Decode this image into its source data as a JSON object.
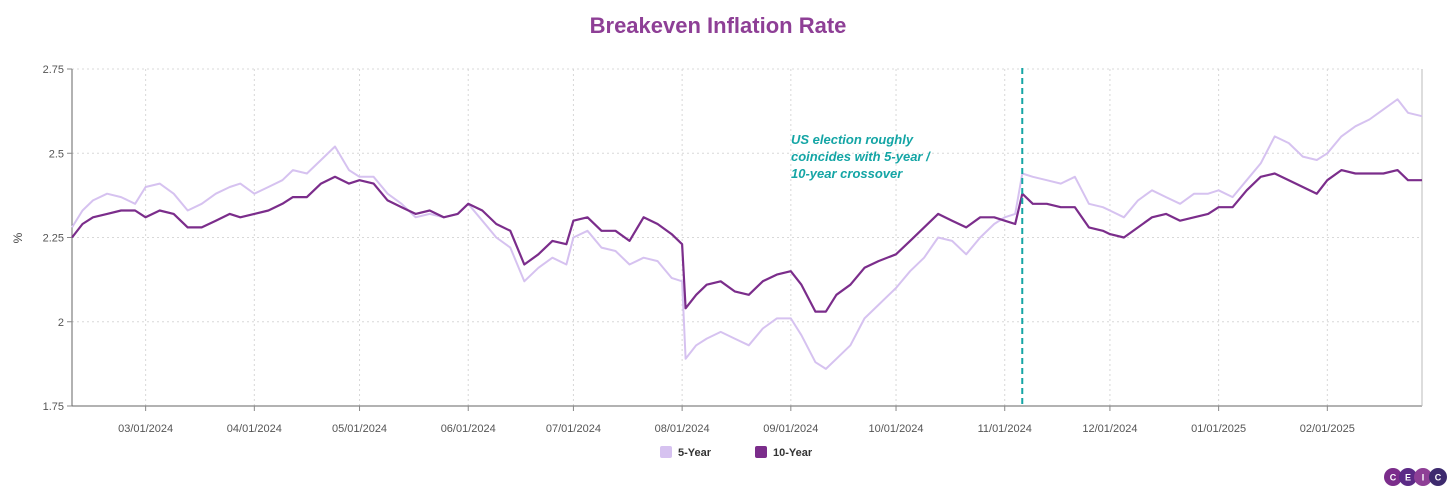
{
  "chart_data": {
    "type": "line",
    "title": "Breakeven Inflation Rate",
    "ylabel": "%",
    "xlabel": "",
    "ylim": [
      1.75,
      2.75
    ],
    "yticks": [
      1.75,
      2,
      2.25,
      2.5,
      2.75
    ],
    "ytick_labels": [
      "1.75",
      "2",
      "2.25",
      "2.5",
      "2.75"
    ],
    "xlim": [
      "2024-02-09",
      "2025-02-28"
    ],
    "xticks": [
      "2024-03-01",
      "2024-04-01",
      "2024-05-01",
      "2024-06-01",
      "2024-07-01",
      "2024-08-01",
      "2024-09-01",
      "2024-10-01",
      "2024-11-01",
      "2024-12-01",
      "2025-01-01",
      "2025-02-01"
    ],
    "xtick_labels": [
      "03/01/2024",
      "04/01/2024",
      "05/01/2024",
      "06/01/2024",
      "07/01/2024",
      "08/01/2024",
      "09/01/2024",
      "10/01/2024",
      "11/01/2024",
      "12/01/2024",
      "01/01/2025",
      "02/01/2025"
    ],
    "grid": true,
    "legend_position": "bottom-center",
    "vline": {
      "date": "2024-11-06",
      "color": "#14a5a5",
      "style": "dashed"
    },
    "annotation": {
      "lines": [
        "US election roughly",
        "coincides with 5-year /",
        "10-year crossover"
      ],
      "color": "#14a5a5"
    },
    "series": [
      {
        "name": "5-Year",
        "color": "#d6c2f0",
        "x": [
          "2024-02-09",
          "2024-02-12",
          "2024-02-15",
          "2024-02-19",
          "2024-02-23",
          "2024-02-27",
          "2024-03-01",
          "2024-03-05",
          "2024-03-09",
          "2024-03-13",
          "2024-03-17",
          "2024-03-21",
          "2024-03-25",
          "2024-03-28",
          "2024-04-01",
          "2024-04-05",
          "2024-04-09",
          "2024-04-12",
          "2024-04-16",
          "2024-04-20",
          "2024-04-24",
          "2024-04-28",
          "2024-05-01",
          "2024-05-05",
          "2024-05-09",
          "2024-05-13",
          "2024-05-17",
          "2024-05-21",
          "2024-05-25",
          "2024-05-29",
          "2024-06-01",
          "2024-06-05",
          "2024-06-09",
          "2024-06-13",
          "2024-06-17",
          "2024-06-21",
          "2024-06-25",
          "2024-06-29",
          "2024-07-01",
          "2024-07-05",
          "2024-07-09",
          "2024-07-13",
          "2024-07-17",
          "2024-07-21",
          "2024-07-25",
          "2024-07-29",
          "2024-08-01",
          "2024-08-02",
          "2024-08-05",
          "2024-08-08",
          "2024-08-12",
          "2024-08-16",
          "2024-08-20",
          "2024-08-24",
          "2024-08-28",
          "2024-09-01",
          "2024-09-04",
          "2024-09-08",
          "2024-09-11",
          "2024-09-14",
          "2024-09-18",
          "2024-09-22",
          "2024-09-26",
          "2024-10-01",
          "2024-10-05",
          "2024-10-09",
          "2024-10-13",
          "2024-10-17",
          "2024-10-21",
          "2024-10-25",
          "2024-10-29",
          "2024-11-01",
          "2024-11-04",
          "2024-11-06",
          "2024-11-09",
          "2024-11-13",
          "2024-11-17",
          "2024-11-21",
          "2024-11-25",
          "2024-11-29",
          "2024-12-01",
          "2024-12-05",
          "2024-12-09",
          "2024-12-13",
          "2024-12-17",
          "2024-12-21",
          "2024-12-25",
          "2024-12-29",
          "2025-01-01",
          "2025-01-05",
          "2025-01-09",
          "2025-01-13",
          "2025-01-17",
          "2025-01-21",
          "2025-01-25",
          "2025-01-29",
          "2025-02-01",
          "2025-02-05",
          "2025-02-09",
          "2025-02-13",
          "2025-02-17",
          "2025-02-21",
          "2025-02-24",
          "2025-02-28"
        ],
        "values": [
          2.28,
          2.33,
          2.36,
          2.38,
          2.37,
          2.35,
          2.4,
          2.41,
          2.38,
          2.33,
          2.35,
          2.38,
          2.4,
          2.41,
          2.38,
          2.4,
          2.42,
          2.45,
          2.44,
          2.48,
          2.52,
          2.45,
          2.43,
          2.43,
          2.38,
          2.35,
          2.31,
          2.32,
          2.31,
          2.32,
          2.35,
          2.3,
          2.25,
          2.22,
          2.12,
          2.16,
          2.19,
          2.17,
          2.25,
          2.27,
          2.22,
          2.21,
          2.17,
          2.19,
          2.18,
          2.13,
          2.12,
          1.89,
          1.93,
          1.95,
          1.97,
          1.95,
          1.93,
          1.98,
          2.01,
          2.01,
          1.96,
          1.88,
          1.86,
          1.89,
          1.93,
          2.01,
          2.05,
          2.1,
          2.15,
          2.19,
          2.25,
          2.24,
          2.2,
          2.25,
          2.29,
          2.31,
          2.32,
          2.44,
          2.43,
          2.42,
          2.41,
          2.43,
          2.35,
          2.34,
          2.33,
          2.31,
          2.36,
          2.39,
          2.37,
          2.35,
          2.38,
          2.38,
          2.39,
          2.37,
          2.42,
          2.47,
          2.55,
          2.53,
          2.49,
          2.48,
          2.5,
          2.55,
          2.58,
          2.6,
          2.63,
          2.66,
          2.62,
          2.61
        ]
      },
      {
        "name": "10-Year",
        "color": "#7b2d8b",
        "x": [
          "2024-02-09",
          "2024-02-12",
          "2024-02-15",
          "2024-02-19",
          "2024-02-23",
          "2024-02-27",
          "2024-03-01",
          "2024-03-05",
          "2024-03-09",
          "2024-03-13",
          "2024-03-17",
          "2024-03-21",
          "2024-03-25",
          "2024-03-28",
          "2024-04-01",
          "2024-04-05",
          "2024-04-09",
          "2024-04-12",
          "2024-04-16",
          "2024-04-20",
          "2024-04-24",
          "2024-04-28",
          "2024-05-01",
          "2024-05-05",
          "2024-05-09",
          "2024-05-13",
          "2024-05-17",
          "2024-05-21",
          "2024-05-25",
          "2024-05-29",
          "2024-06-01",
          "2024-06-05",
          "2024-06-09",
          "2024-06-13",
          "2024-06-17",
          "2024-06-21",
          "2024-06-25",
          "2024-06-29",
          "2024-07-01",
          "2024-07-05",
          "2024-07-09",
          "2024-07-13",
          "2024-07-17",
          "2024-07-21",
          "2024-07-25",
          "2024-07-29",
          "2024-08-01",
          "2024-08-02",
          "2024-08-05",
          "2024-08-08",
          "2024-08-12",
          "2024-08-16",
          "2024-08-20",
          "2024-08-24",
          "2024-08-28",
          "2024-09-01",
          "2024-09-04",
          "2024-09-08",
          "2024-09-11",
          "2024-09-14",
          "2024-09-18",
          "2024-09-22",
          "2024-09-26",
          "2024-10-01",
          "2024-10-05",
          "2024-10-09",
          "2024-10-13",
          "2024-10-17",
          "2024-10-21",
          "2024-10-25",
          "2024-10-29",
          "2024-11-01",
          "2024-11-04",
          "2024-11-06",
          "2024-11-09",
          "2024-11-13",
          "2024-11-17",
          "2024-11-21",
          "2024-11-25",
          "2024-11-29",
          "2024-12-01",
          "2024-12-05",
          "2024-12-09",
          "2024-12-13",
          "2024-12-17",
          "2024-12-21",
          "2024-12-25",
          "2024-12-29",
          "2025-01-01",
          "2025-01-05",
          "2025-01-09",
          "2025-01-13",
          "2025-01-17",
          "2025-01-21",
          "2025-01-25",
          "2025-01-29",
          "2025-02-01",
          "2025-02-05",
          "2025-02-09",
          "2025-02-13",
          "2025-02-17",
          "2025-02-21",
          "2025-02-24",
          "2025-02-28"
        ],
        "values": [
          2.25,
          2.29,
          2.31,
          2.32,
          2.33,
          2.33,
          2.31,
          2.33,
          2.32,
          2.28,
          2.28,
          2.3,
          2.32,
          2.31,
          2.32,
          2.33,
          2.35,
          2.37,
          2.37,
          2.41,
          2.43,
          2.41,
          2.42,
          2.41,
          2.36,
          2.34,
          2.32,
          2.33,
          2.31,
          2.32,
          2.35,
          2.33,
          2.29,
          2.27,
          2.17,
          2.2,
          2.24,
          2.23,
          2.3,
          2.31,
          2.27,
          2.27,
          2.24,
          2.31,
          2.29,
          2.26,
          2.23,
          2.04,
          2.08,
          2.11,
          2.12,
          2.09,
          2.08,
          2.12,
          2.14,
          2.15,
          2.11,
          2.03,
          2.03,
          2.08,
          2.11,
          2.16,
          2.18,
          2.2,
          2.24,
          2.28,
          2.32,
          2.3,
          2.28,
          2.31,
          2.31,
          2.3,
          2.29,
          2.38,
          2.35,
          2.35,
          2.34,
          2.34,
          2.28,
          2.27,
          2.26,
          2.25,
          2.28,
          2.31,
          2.32,
          2.3,
          2.31,
          2.32,
          2.34,
          2.34,
          2.39,
          2.43,
          2.44,
          2.42,
          2.4,
          2.38,
          2.42,
          2.45,
          2.44,
          2.44,
          2.44,
          2.45,
          2.42,
          2.42
        ]
      }
    ]
  },
  "legend": {
    "items": [
      {
        "label": "5-Year",
        "color": "#d6c2f0"
      },
      {
        "label": "10-Year",
        "color": "#7b2d8b"
      }
    ]
  },
  "logo": {
    "text": "CEIC",
    "colors": [
      "#7b2d8b",
      "#5b2a86",
      "#8e3f96",
      "#3d2a6e"
    ]
  }
}
